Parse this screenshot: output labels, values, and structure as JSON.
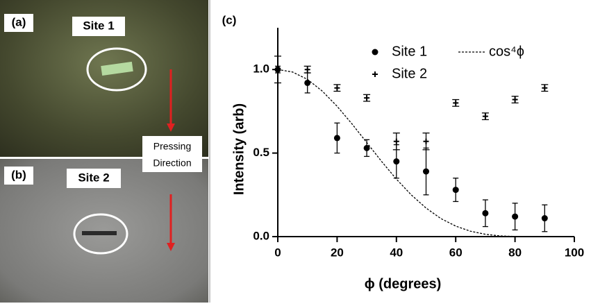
{
  "panels": {
    "a": {
      "label": "(a)",
      "site": "Site 1"
    },
    "b": {
      "label": "(b)",
      "site": "Site 2"
    },
    "annotation": [
      "Pressing",
      "Direction"
    ]
  },
  "chart_data": {
    "type": "errorbar",
    "panel_label": "(c)",
    "x_label": "ϕ (degrees)",
    "y_label": "Intensity (arb)",
    "x": [
      0,
      10,
      20,
      30,
      40,
      50,
      60,
      70,
      80,
      90
    ],
    "series": [
      {
        "name": "Site 1",
        "marker": "circle",
        "color": "#000000",
        "values": [
          1.0,
          0.92,
          0.59,
          0.53,
          0.45,
          0.39,
          0.28,
          0.14,
          0.12,
          0.11
        ],
        "errors": [
          0.02,
          0.06,
          0.09,
          0.05,
          0.1,
          0.14,
          0.07,
          0.08,
          0.08,
          0.08
        ]
      },
      {
        "name": "Site 2",
        "marker": "plus",
        "color": "#000000",
        "values": [
          1.0,
          1.0,
          0.89,
          0.83,
          0.57,
          0.57,
          0.8,
          0.72,
          0.82,
          0.89
        ],
        "errors": [
          0.08,
          0.02,
          0.02,
          0.02,
          0.05,
          0.05,
          0.02,
          0.02,
          0.02,
          0.02
        ]
      },
      {
        "name": "cos⁴ϕ",
        "marker": "dashed-line",
        "color": "#000000",
        "x": [
          0,
          5,
          10,
          15,
          20,
          25,
          30,
          35,
          40,
          45,
          50,
          55,
          60,
          65,
          70,
          75,
          80,
          85,
          90
        ],
        "values": [
          1,
          0.985,
          0.941,
          0.871,
          0.78,
          0.675,
          0.563,
          0.45,
          0.344,
          0.25,
          0.171,
          0.108,
          0.063,
          0.032,
          0.014,
          0.004,
          0.001,
          0,
          0
        ]
      }
    ],
    "xlim": [
      0,
      100
    ],
    "xticks": [
      0,
      20,
      40,
      60,
      80,
      100
    ],
    "ylim": [
      0,
      1.25
    ],
    "yticks": [
      {
        "value": 0,
        "label": "0.0"
      },
      {
        "value": 0.5,
        "label": "0.5"
      },
      {
        "value": 1,
        "label": "1.0"
      }
    ]
  }
}
